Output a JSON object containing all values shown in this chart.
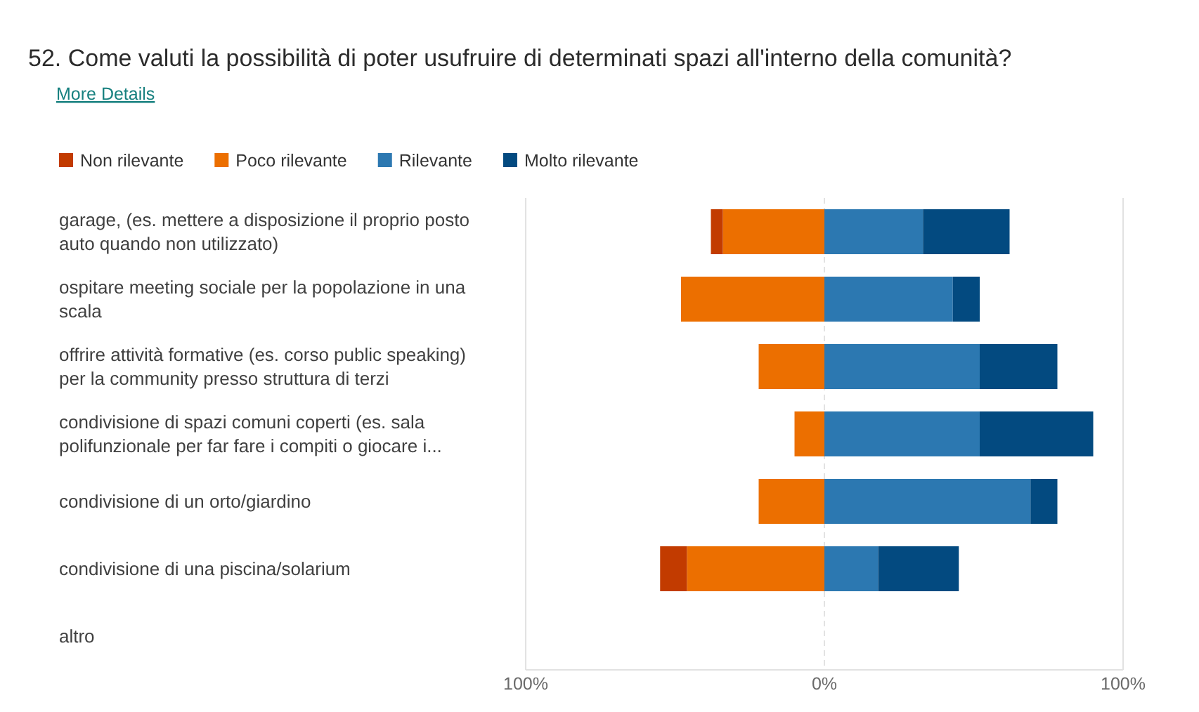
{
  "chart_data": {
    "type": "bar",
    "orientation": "horizontal",
    "stacked": true,
    "title": "52. Come valuti la possibilità di poter usufruire di determinati spazi all'interno della comunità?",
    "subtitle": "More Details",
    "categories": [
      "garage, (es. mettere a disposizione il proprio posto auto quando non utilizzato)",
      "ospitare meeting sociale per la popolazione in una scala",
      "offrire attività formative (es. corso public speaking) per la community presso struttura di terzi",
      "condivisione di spazi comuni coperti (es. sala polifunzionale per far fare i compiti o giocare i...",
      "condivisione di un orto/giardino",
      "condivisione di una piscina/solarium",
      "altro"
    ],
    "series": [
      {
        "name": "Poco rilevante",
        "color": "#ec6f00",
        "values": [
          -34,
          -48,
          -22,
          -10,
          -22,
          -46,
          null
        ]
      },
      {
        "name": "Non rilevante",
        "color": "#c23b00",
        "values": [
          -4,
          null,
          null,
          null,
          null,
          -9,
          null
        ]
      },
      {
        "name": "Rilevante",
        "color": "#2c78b1",
        "values": [
          33,
          43,
          52,
          52,
          69,
          18,
          null
        ]
      },
      {
        "name": "Molto rilevante",
        "color": "#034a80",
        "values": [
          29,
          9,
          26,
          38,
          9,
          27,
          null
        ]
      }
    ],
    "xlim": [
      -100,
      100
    ],
    "xticks": [
      {
        "value": -100,
        "label": "100%"
      },
      {
        "value": 0,
        "label": "0%"
      },
      {
        "value": 100,
        "label": "100%"
      }
    ],
    "grid": "x",
    "legend": "top left"
  }
}
